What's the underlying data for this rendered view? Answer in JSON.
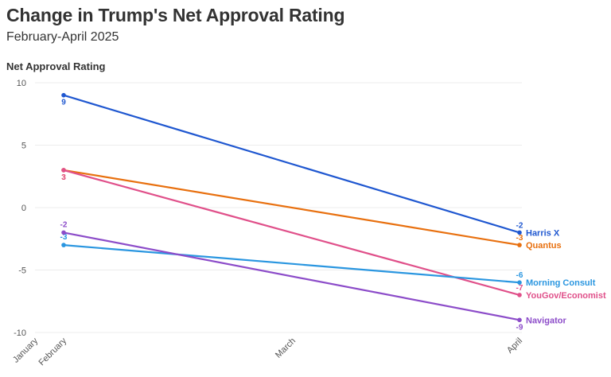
{
  "chart_data": {
    "type": "line",
    "title": "Change in Trump's Net Approval Rating",
    "subtitle": "February-April 2025",
    "ylabel": "Net Approval Rating",
    "xlabel": "",
    "x_ticks": [
      "January",
      "February",
      "March",
      "April"
    ],
    "y_ticks": [
      10,
      5,
      0,
      -5,
      -10
    ],
    "ylim": [
      -10,
      10
    ],
    "grid": true,
    "x": [
      "February",
      "April"
    ],
    "series": [
      {
        "name": "Harris X",
        "color": "#1f57d0",
        "values": [
          9,
          -2
        ],
        "value_labels": [
          "9",
          "-2"
        ]
      },
      {
        "name": "Quantus",
        "color": "#e8700f",
        "values": [
          3,
          -3
        ],
        "value_labels": [
          "3",
          "-3"
        ]
      },
      {
        "name": "YouGov/Economist",
        "color": "#e0508a",
        "values": [
          3,
          -7
        ],
        "value_labels": [
          "3",
          "-7"
        ]
      },
      {
        "name": "Morning Consult",
        "color": "#2a96e0",
        "values": [
          -3,
          -6
        ],
        "value_labels": [
          "-3",
          "-6"
        ]
      },
      {
        "name": "Navigator",
        "color": "#8c4cc9",
        "values": [
          -2,
          -9
        ],
        "value_labels": [
          "-2",
          "-9"
        ]
      }
    ]
  }
}
